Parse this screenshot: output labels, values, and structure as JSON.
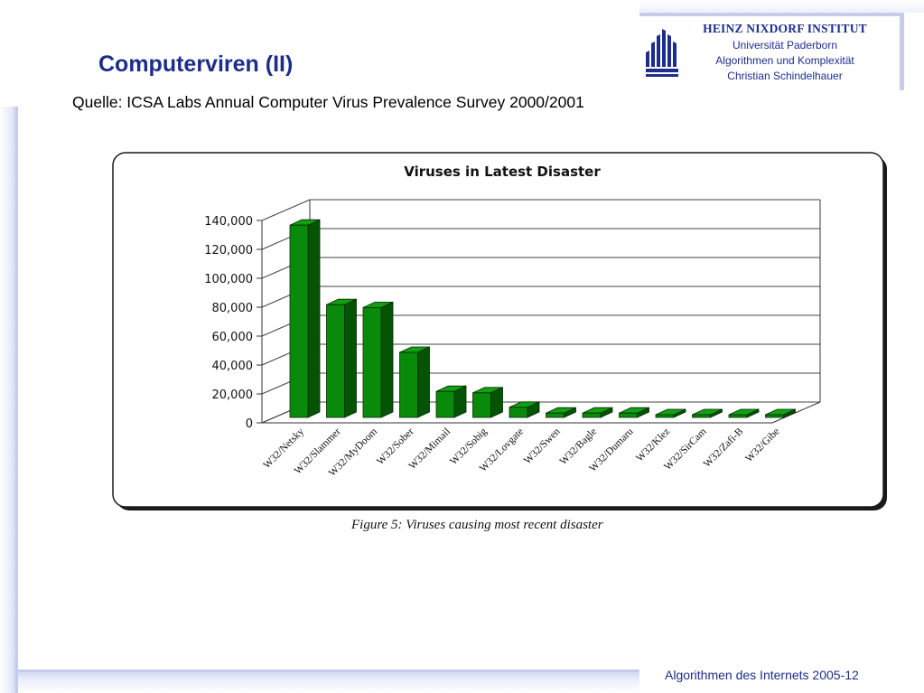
{
  "slide": {
    "title": "Computerviren (II)",
    "source": "Quelle: ICSA Labs Annual Computer Virus Prevalence Survey 2000/2001",
    "caption": "Figure 5: Viruses causing most recent disaster",
    "footer": "Algorithmen des Internets 2005-12"
  },
  "institute": {
    "name": "HEINZ NIXDORF INSTITUT",
    "lines": [
      "Universität Paderborn",
      "Algorithmen und Komplexität",
      "Christian Schindelhauer"
    ]
  },
  "colors": {
    "title": "#1d2d8c",
    "bar_front": "#0a8a0a",
    "bar_side": "#055405",
    "bar_top": "#13a013",
    "frame_accent": "#c5cbea"
  },
  "chart_data": {
    "type": "bar",
    "title": "Viruses in Latest Disaster",
    "xlabel": "",
    "ylabel": "",
    "ylim": [
      0,
      140000
    ],
    "yticks": [
      "140,000",
      "120,000",
      "100,000",
      "80,000",
      "60,000",
      "40,000",
      "20,000",
      "0"
    ],
    "grid": true,
    "three_d": true,
    "categories": [
      "W32/Netsky",
      "W32/Slammer",
      "W32/MyDoom",
      "W32/Sober",
      "W32/Mimail",
      "W32/Sobig",
      "W32/Lovgate",
      "W32/Swen",
      "W32/Bagle",
      "W32/Dumaru",
      "W32/Klez",
      "W32/SirCam",
      "W32/Zafi-B",
      "W32/Gibe"
    ],
    "values": [
      133000,
      78000,
      76000,
      45000,
      18000,
      17000,
      7000,
      3000,
      3000,
      3000,
      1500,
      1500,
      1500,
      1500
    ]
  }
}
